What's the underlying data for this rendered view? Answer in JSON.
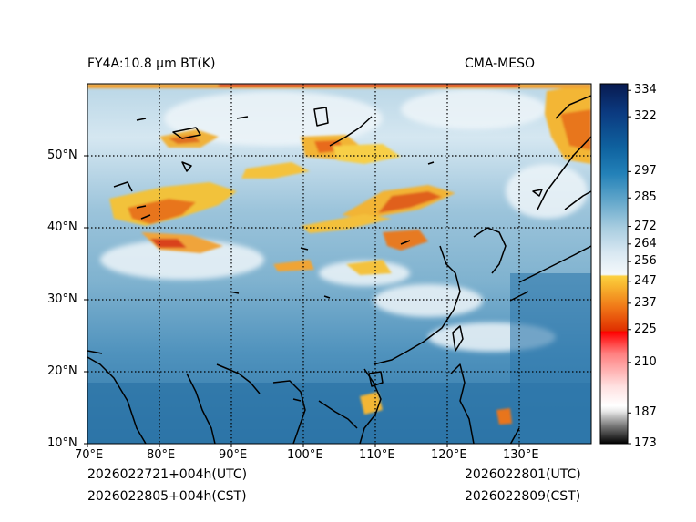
{
  "title_left": "FY4A:10.8 µm BT(K)",
  "title_right": "CMA-MESO",
  "footer": {
    "init_utc": "2026022721+004h(UTC)",
    "init_cst": "2026022805+004h(CST)",
    "valid_utc": "2026022801(UTC)",
    "valid_cst": "2026022809(CST)"
  },
  "map": {
    "lon_range": [
      70,
      140
    ],
    "lat_range": [
      10,
      60
    ],
    "lon_ticks": [
      "70°E",
      "80°E",
      "90°E",
      "100°E",
      "110°E",
      "120°E",
      "130°E"
    ],
    "lat_ticks": [
      "10°N",
      "20°N",
      "30°N",
      "40°N",
      "50°N"
    ]
  },
  "colorbar": {
    "unit": "K",
    "range": [
      173,
      337
    ],
    "ticks": [
      "334",
      "322",
      "297",
      "285",
      "272",
      "264",
      "256",
      "247",
      "237",
      "225",
      "210",
      "187",
      "173"
    ],
    "tick_values": [
      334,
      322,
      297,
      285,
      272,
      264,
      256,
      247,
      237,
      225,
      210,
      187,
      173
    ]
  },
  "colors": {
    "ocean": "#2b73a6",
    "cloud_high": "#e4c43a",
    "cold_top": "#e05a10",
    "red_band": "#ff0000"
  }
}
